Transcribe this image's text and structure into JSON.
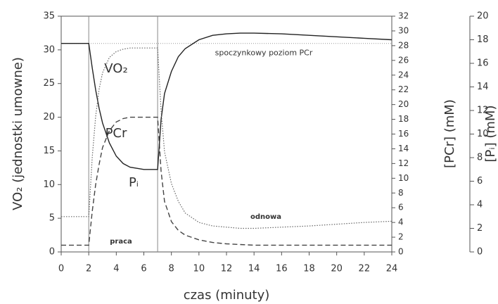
{
  "chart_data": {
    "type": "line",
    "xlabel": "czas (minuty)",
    "ylabel": "VO₂ (jednostki umowne)",
    "y2label": "[PCr] (mM)",
    "y3label": "[Pᵢ] (mM)",
    "xlim": [
      0,
      24
    ],
    "xticks": [
      0,
      2,
      4,
      6,
      8,
      10,
      12,
      14,
      16,
      18,
      20,
      22,
      24
    ],
    "ylim": [
      0,
      35
    ],
    "yticks": [
      0,
      5,
      10,
      15,
      20,
      25,
      30,
      35
    ],
    "y2lim": [
      0,
      32
    ],
    "y2ticks": [
      0,
      2,
      4,
      6,
      8,
      10,
      12,
      14,
      16,
      18,
      20,
      22,
      24,
      26,
      28,
      30,
      32
    ],
    "y3lim": [
      0,
      20
    ],
    "y3ticks": [
      0,
      2,
      4,
      6,
      8,
      10,
      12,
      14,
      16,
      18,
      20
    ],
    "x": [
      0,
      1,
      2,
      2.25,
      2.5,
      2.75,
      3,
      3.5,
      4,
      4.5,
      5,
      6,
      7,
      7.25,
      7.5,
      8,
      8.5,
      9,
      10,
      11,
      12,
      13,
      14,
      16,
      18,
      20,
      22,
      24
    ],
    "series": [
      {
        "name": "VO₂",
        "color": "#444444",
        "style": "dashed",
        "axis": "y",
        "values": [
          1,
          1,
          1,
          6,
          10,
          13,
          15.5,
          18,
          19.3,
          19.8,
          20,
          20,
          20,
          12,
          7.5,
          4.5,
          3.2,
          2.5,
          1.8,
          1.4,
          1.2,
          1.1,
          1,
          1,
          1,
          1,
          1,
          1
        ]
      },
      {
        "name": "PCr",
        "color": "#222222",
        "style": "solid",
        "axis": "y2",
        "values": [
          28.3,
          28.3,
          28.3,
          25,
          22,
          19.5,
          17.5,
          14.8,
          13,
          12,
          11.5,
          11.2,
          11.2,
          18,
          21.5,
          24.5,
          26.5,
          27.6,
          28.8,
          29.4,
          29.6,
          29.7,
          29.7,
          29.6,
          29.4,
          29.2,
          29.0,
          28.8
        ]
      },
      {
        "name": "Pᵢ",
        "color": "#666666",
        "style": "dotted",
        "axis": "y3",
        "values": [
          3,
          3,
          3,
          8,
          11.5,
          13.8,
          15.2,
          16.5,
          17,
          17.2,
          17.3,
          17.3,
          17.3,
          12,
          8.5,
          5.8,
          4.3,
          3.3,
          2.5,
          2.2,
          2.1,
          2.0,
          2.0,
          2.1,
          2.2,
          2.35,
          2.5,
          2.6
        ]
      }
    ],
    "vlines": [
      2,
      7
    ],
    "rest_line": {
      "value": 28.3,
      "axis": "y2",
      "label": "spoczynkowy poziom PCr"
    },
    "annotations": [
      "odnowa",
      "praca"
    ]
  }
}
